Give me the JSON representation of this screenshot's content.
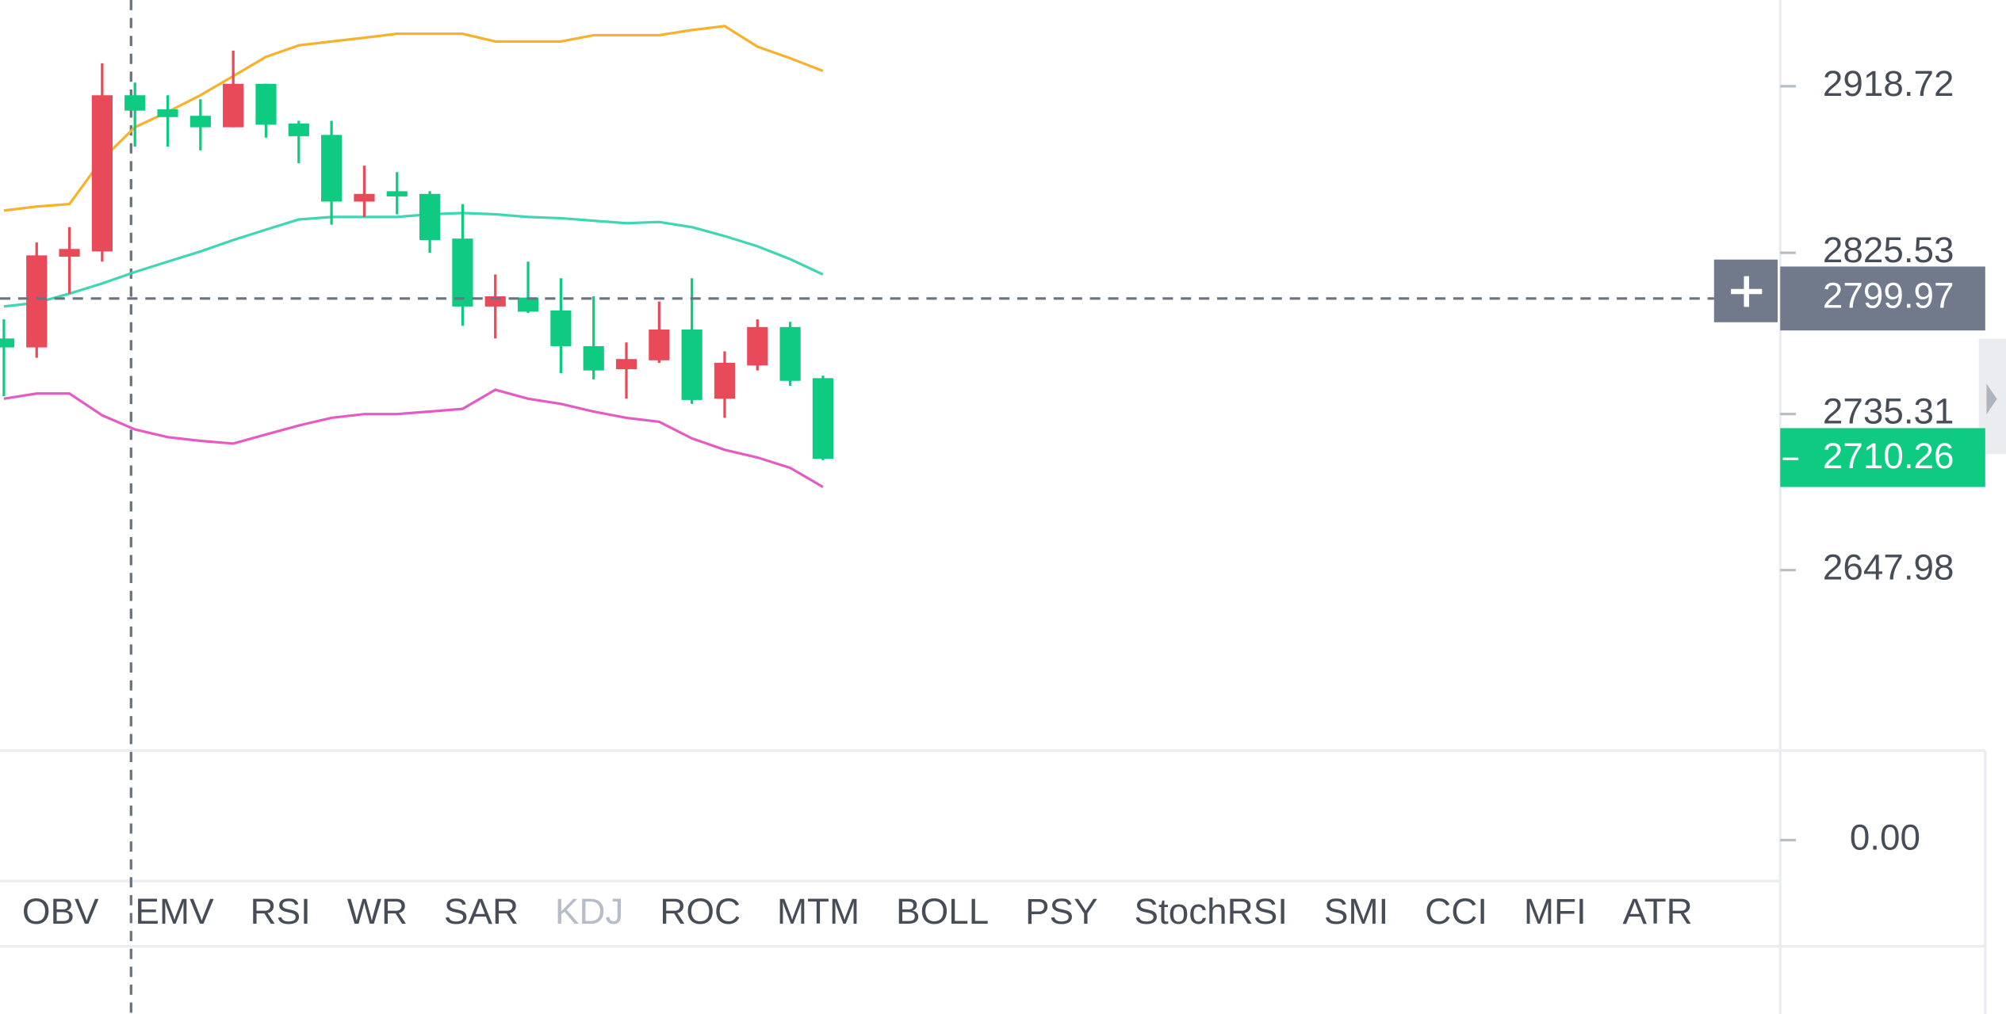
{
  "chart_data": {
    "type": "candlestick",
    "ylim": [
      2547,
      2967
    ],
    "yticks": [
      2918.72,
      2825.53,
      2735.31,
      2647.98
    ],
    "up_color": "#e84a5a",
    "down_color": "#0ecb81",
    "open": [
      2777.6,
      2772.6,
      2823.4,
      2826.3,
      2913.7,
      2905.8,
      2902.2,
      2895.8,
      2920.1,
      2897.9,
      2891.5,
      2854.2,
      2860.0,
      2858.5,
      2833.5,
      2795.5,
      2800.5,
      2793.3,
      2773.3,
      2760.4,
      2765.4,
      2782.6,
      2743.9,
      2762.5,
      2784.0,
      2755.4
    ],
    "high": [
      2788.3,
      2831.3,
      2839.9,
      2931.6,
      2920.8,
      2913.7,
      2911.5,
      2938.7,
      2920.1,
      2899.4,
      2899.4,
      2874.3,
      2870.7,
      2860.0,
      2852.8,
      2813.4,
      2820.6,
      2811.3,
      2801.2,
      2775.4,
      2798.3,
      2811.3,
      2770.4,
      2788.3,
      2786.9,
      2756.8
    ],
    "low": [
      2745.3,
      2766.8,
      2802.7,
      2820.6,
      2885.0,
      2885.0,
      2882.9,
      2895.8,
      2890.0,
      2875.7,
      2841.3,
      2845.6,
      2847.1,
      2825.6,
      2784.7,
      2777.6,
      2791.9,
      2758.2,
      2754.7,
      2743.9,
      2763.9,
      2741.0,
      2733.2,
      2759.7,
      2751.1,
      2709.5
    ],
    "close": [
      2772.6,
      2824.1,
      2827.7,
      2913.7,
      2905.1,
      2901.5,
      2895.8,
      2920.1,
      2897.2,
      2890.8,
      2854.2,
      2858.5,
      2857.1,
      2832.7,
      2795.5,
      2801.2,
      2792.6,
      2773.3,
      2759.7,
      2766.1,
      2782.6,
      2743.2,
      2764.0,
      2784.0,
      2753.9,
      2710.26
    ],
    "lines": [
      {
        "color": "#f7b12b",
        "values": [
          2849.2,
          2851.4,
          2852.8,
          2877.9,
          2895.8,
          2904.4,
          2913.7,
          2924.4,
          2935.2,
          2941.6,
          2943.8,
          2945.9,
          2948.1,
          2948.1,
          2948.1,
          2943.8,
          2943.8,
          2943.8,
          2947.3,
          2947.3,
          2947.3,
          2950.2,
          2952.4,
          2940.9,
          2934.4,
          2927.3
        ]
      },
      {
        "color": "#3ed6b3",
        "values": [
          2795.5,
          2797.6,
          2802.7,
          2808.4,
          2814.8,
          2820.6,
          2826.3,
          2832.7,
          2838.5,
          2844.2,
          2845.6,
          2845.6,
          2845.6,
          2847.1,
          2847.8,
          2847.1,
          2845.6,
          2844.9,
          2843.5,
          2842.1,
          2842.8,
          2839.9,
          2834.9,
          2829.2,
          2822.0,
          2813.4
        ]
      },
      {
        "color": "#e55bc4",
        "values": [
          2743.9,
          2746.8,
          2746.8,
          2734.6,
          2726.7,
          2722.4,
          2720.3,
          2718.8,
          2723.9,
          2728.9,
          2733.2,
          2735.3,
          2735.3,
          2736.7,
          2738.2,
          2748.9,
          2743.9,
          2741.0,
          2736.7,
          2733.2,
          2731.0,
          2721.7,
          2715.3,
          2711.0,
          2705.2,
          2694.5
        ]
      }
    ],
    "crosshair_price": 2799.97,
    "last_price": 2710.26
  },
  "indicator_pane": {
    "yticks": [
      {
        "value": 0,
        "label": "0.00"
      }
    ]
  },
  "tabs": [
    "OBV",
    "EMV",
    "RSI",
    "WR",
    "SAR",
    "KDJ",
    "ROC",
    "MTM",
    "BOLL",
    "PSY",
    "StochRSI",
    "SMI",
    "CCI",
    "MFI",
    "ATR"
  ],
  "muted_tab": 5
}
